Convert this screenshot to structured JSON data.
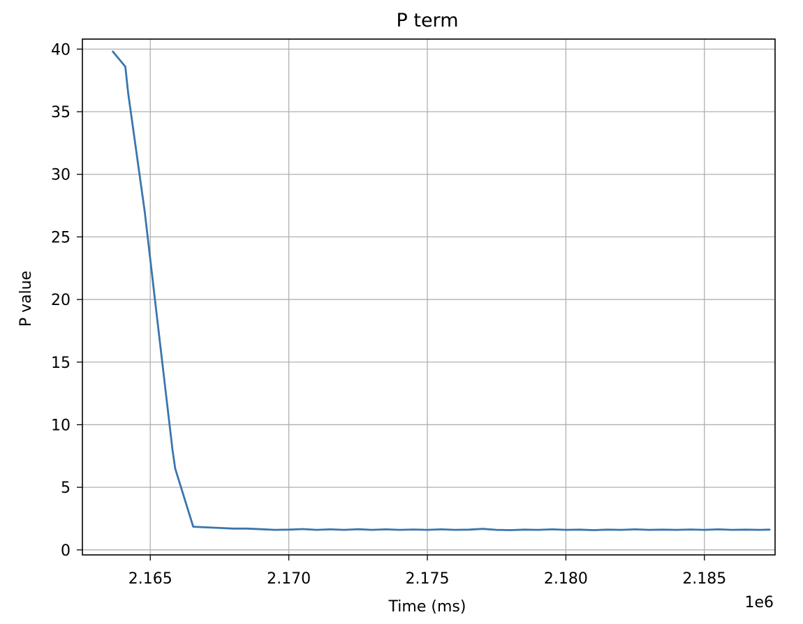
{
  "chart_data": {
    "type": "line",
    "title": "P term",
    "xlabel": "Time (ms)",
    "ylabel": "P value",
    "x_offset_label": "1e6",
    "xlim": [
      2.16255,
      2.18755
    ],
    "ylim": [
      -0.4,
      40.8
    ],
    "xticks": [
      2.165,
      2.17,
      2.175,
      2.18,
      2.185
    ],
    "xtick_labels": [
      "2.165",
      "2.170",
      "2.175",
      "2.180",
      "2.185"
    ],
    "yticks": [
      0,
      5,
      10,
      15,
      20,
      25,
      30,
      35,
      40
    ],
    "ytick_labels": [
      "0",
      "5",
      "10",
      "15",
      "20",
      "25",
      "30",
      "35",
      "40"
    ],
    "grid": true,
    "line_color": "#3b75af",
    "series": [
      {
        "x": [
          2.16365,
          2.1641,
          2.1642,
          2.1648,
          2.1653,
          2.1658,
          2.1659,
          2.16655,
          2.167,
          2.1675,
          2.168,
          2.1685,
          2.169,
          2.1695,
          2.17,
          2.1705,
          2.171,
          2.1715,
          2.172,
          2.1725,
          2.173,
          2.1735,
          2.174,
          2.1745,
          2.175,
          2.1755,
          2.176,
          2.1765,
          2.177,
          2.1775,
          2.178,
          2.1785,
          2.179,
          2.1795,
          2.18,
          2.1805,
          2.181,
          2.1815,
          2.182,
          2.1825,
          2.183,
          2.1835,
          2.184,
          2.1845,
          2.185,
          2.1855,
          2.186,
          2.1865,
          2.187,
          2.18735
        ],
        "y": [
          39.8,
          38.6,
          36.5,
          27.0,
          17.5,
          8.0,
          6.5,
          1.85,
          1.8,
          1.75,
          1.7,
          1.7,
          1.65,
          1.6,
          1.62,
          1.66,
          1.6,
          1.64,
          1.6,
          1.65,
          1.6,
          1.64,
          1.6,
          1.63,
          1.6,
          1.64,
          1.6,
          1.62,
          1.68,
          1.6,
          1.58,
          1.62,
          1.6,
          1.64,
          1.6,
          1.62,
          1.58,
          1.62,
          1.6,
          1.64,
          1.6,
          1.62,
          1.6,
          1.63,
          1.6,
          1.64,
          1.6,
          1.62,
          1.6,
          1.62
        ]
      }
    ]
  }
}
